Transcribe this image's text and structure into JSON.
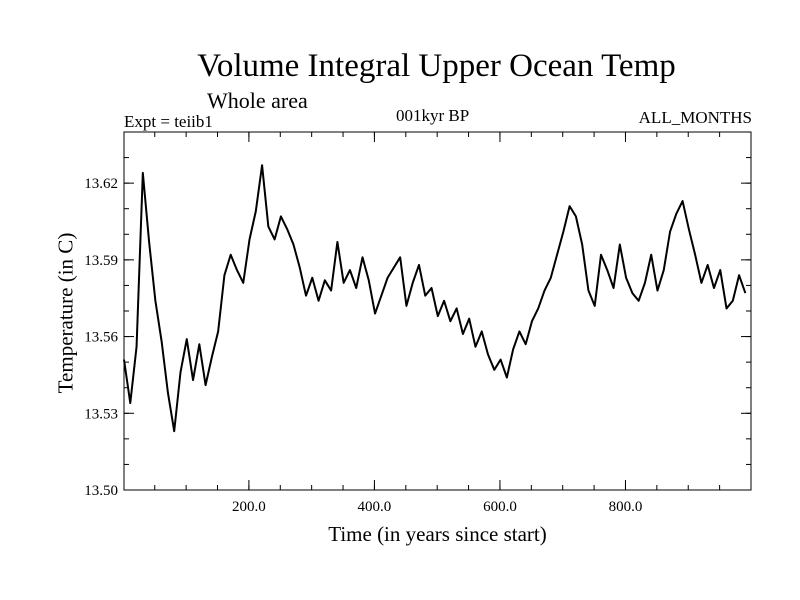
{
  "chart_data": {
    "type": "line",
    "title": "Volume Integral Upper Ocean Temp",
    "subtitle": "Whole area",
    "annotations": {
      "experiment": "Expt = teiib1",
      "period": "001kyr BP",
      "months": "ALL_MONTHS"
    },
    "xlabel": "Time (in years since start)",
    "ylabel": "Temperature (in C)",
    "xlim": [
      1,
      1000
    ],
    "ylim": [
      13.5,
      13.64
    ],
    "x_ticks": [
      200,
      400,
      600,
      800
    ],
    "x_tick_labels": [
      "200.0",
      "400.0",
      "600.0",
      "800.0"
    ],
    "y_ticks": [
      13.5,
      13.53,
      13.56,
      13.59,
      13.62
    ],
    "y_tick_labels": [
      "13.50",
      "13.53",
      "13.56",
      "13.59",
      "13.62"
    ],
    "series": [
      {
        "color": "#000000",
        "x_start": 1,
        "x_step": 10,
        "values": [
          13.551,
          13.534,
          13.556,
          13.624,
          13.597,
          13.574,
          13.558,
          13.538,
          13.523,
          13.546,
          13.559,
          13.543,
          13.557,
          13.541,
          13.552,
          13.562,
          13.584,
          13.592,
          13.586,
          13.581,
          13.598,
          13.609,
          13.627,
          13.603,
          13.598,
          13.607,
          13.602,
          13.596,
          13.587,
          13.576,
          13.583,
          13.574,
          13.582,
          13.578,
          13.597,
          13.581,
          13.586,
          13.579,
          13.591,
          13.582,
          13.569,
          13.576,
          13.583,
          13.587,
          13.591,
          13.572,
          13.581,
          13.588,
          13.576,
          13.579,
          13.568,
          13.574,
          13.566,
          13.571,
          13.561,
          13.567,
          13.556,
          13.562,
          13.553,
          13.547,
          13.551,
          13.544,
          13.555,
          13.562,
          13.557,
          13.566,
          13.571,
          13.578,
          13.583,
          13.592,
          13.601,
          13.611,
          13.607,
          13.596,
          13.578,
          13.572,
          13.592,
          13.586,
          13.579,
          13.596,
          13.583,
          13.577,
          13.574,
          13.581,
          13.592,
          13.578,
          13.586,
          13.601,
          13.608,
          13.613,
          13.602,
          13.592,
          13.581,
          13.588,
          13.579,
          13.586,
          13.571,
          13.574,
          13.584,
          13.577
        ]
      }
    ],
    "grid": false,
    "legend": "none"
  }
}
